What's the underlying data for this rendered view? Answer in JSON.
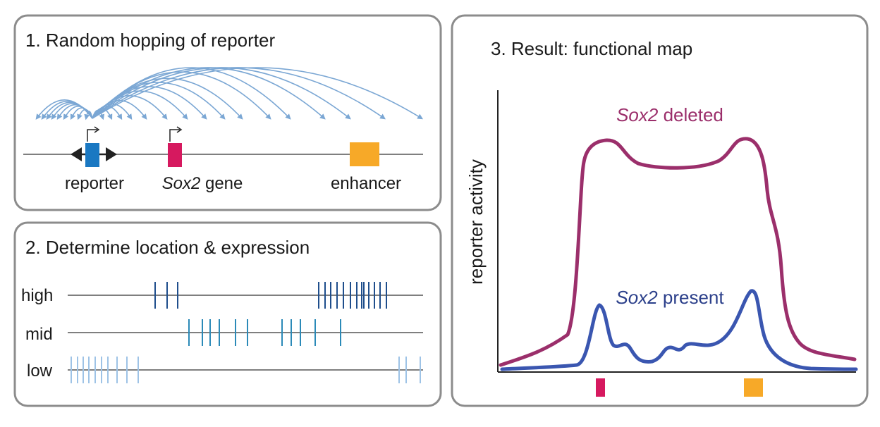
{
  "panel1": {
    "title": "1. Random hopping of reporter",
    "labels": {
      "reporter": "reporter",
      "gene_italic": "Sox2",
      "gene_suffix": " gene",
      "enhancer": "enhancer"
    }
  },
  "panel2": {
    "title": "2. Determine location & expression",
    "tracks": [
      {
        "label": "high",
        "color": "#1f4e8c"
      },
      {
        "label": "mid",
        "color": "#2b8ab8"
      },
      {
        "label": "low",
        "color": "#9ec3e6"
      }
    ]
  },
  "panel3": {
    "title": "3. Result: functional map",
    "ylabel": "reporter activity",
    "deleted": {
      "italic": "Sox2",
      "suffix": " deleted",
      "color": "#9b2f6b"
    },
    "present": {
      "italic": "Sox2",
      "suffix": " present",
      "color": "#3a56b0"
    }
  },
  "colors": {
    "reporter": "#1a78c2",
    "sox2_gene": "#d6195f",
    "enhancer": "#f7a928",
    "hop_arrows": "#7ba7d4",
    "panel_border": "#8c8c8c"
  }
}
